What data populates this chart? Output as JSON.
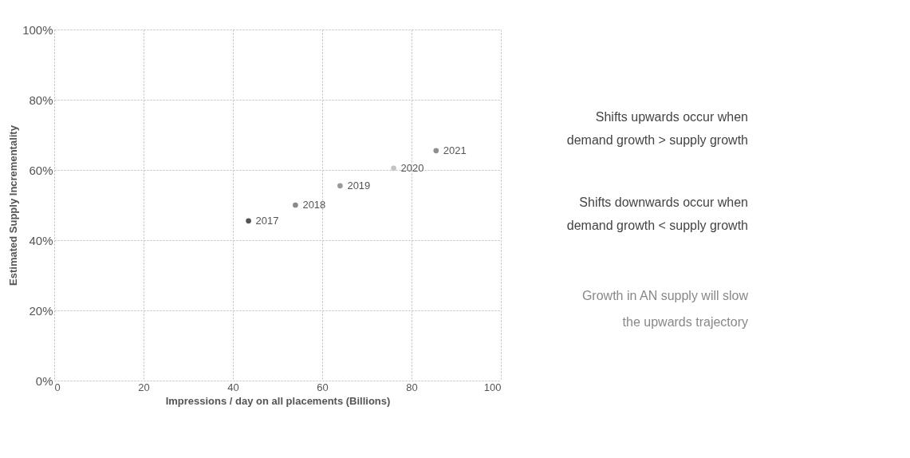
{
  "chart_data": {
    "type": "scatter",
    "xlabel": "Impressions / day on all placements (Billions)",
    "ylabel": "Estimated Supply Incrementality",
    "x": [
      43.5,
      54,
      64,
      76,
      85.5
    ],
    "series": [
      {
        "colors": [
          "#555555",
          "#8a8a8a",
          "#9a9a9a",
          "#c4c4c4",
          "#8f8f8f"
        ],
        "values": [
          45.5,
          50,
          55.5,
          60.5,
          65.5
        ]
      }
    ],
    "xlim": [
      0,
      100
    ],
    "xticks": [
      0,
      20,
      40,
      60,
      80,
      100
    ],
    "ylim": [
      0,
      100
    ],
    "yticks": [
      {
        "value": 0,
        "label": "0%"
      },
      {
        "value": 20,
        "label": "20%"
      },
      {
        "value": 40,
        "label": "40%"
      },
      {
        "value": 60,
        "label": "60%"
      },
      {
        "value": 80,
        "label": "80%"
      },
      {
        "value": 100,
        "label": "100%"
      }
    ],
    "grid": true,
    "marker": "circle",
    "annotations": [
      {
        "text": "2017",
        "x": 43.5,
        "y": 45.5
      },
      {
        "text": "2018",
        "x": 54,
        "y": 50
      },
      {
        "text": "2019",
        "x": 64,
        "y": 55.5
      },
      {
        "text": "2020",
        "x": 76,
        "y": 60.5
      },
      {
        "text": "2021",
        "x": 85.5,
        "y": 65.5
      },
      "Shifts upwards occur when",
      "demand growth > supply growth",
      "Shifts downwards occur when",
      "demand growth < supply growth",
      "Growth in AN supply will slow",
      "the upwards trajectory"
    ]
  }
}
